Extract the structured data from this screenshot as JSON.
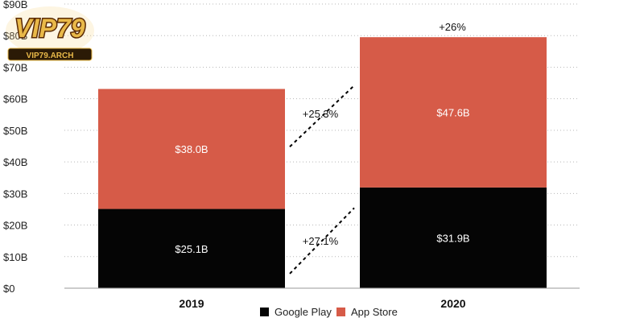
{
  "logo": {
    "main_text": "VIP79",
    "sub_text": "VIP79.ARCH",
    "colors": {
      "gold": "#e9b949",
      "dark_gold": "#9a5d12",
      "outline": "#5a2a04",
      "band": "#2b1a06"
    }
  },
  "colors": {
    "google_play": "#050505",
    "app_store": "#d65b48",
    "grid": "#b8b8b8"
  },
  "chart_data": {
    "type": "bar",
    "stacked": true,
    "categories": [
      "2019",
      "2020"
    ],
    "series": [
      {
        "name": "Google Play",
        "values": [
          25.1,
          31.9
        ],
        "labels": [
          "$25.1B",
          "$31.9B"
        ],
        "color": "#050505"
      },
      {
        "name": "App Store",
        "values": [
          38.0,
          47.6
        ],
        "labels": [
          "$38.0B",
          "$47.6B"
        ],
        "color": "#d65b48"
      }
    ],
    "ylim": [
      0,
      90
    ],
    "yticks": [
      0,
      10,
      20,
      30,
      40,
      50,
      60,
      70,
      80,
      90
    ],
    "ytick_labels": [
      "$0",
      "$10B",
      "$20B",
      "$30B",
      "$40B",
      "$50B",
      "$60B",
      "$70B",
      "$80B",
      "$90B"
    ],
    "grid": true,
    "legend_position": "bottom-center",
    "annotations": {
      "total_growth": "+26%",
      "app_store_growth": "+25.3%",
      "google_play_growth": "+27.1%"
    },
    "title": "",
    "xlabel": "",
    "ylabel": ""
  }
}
